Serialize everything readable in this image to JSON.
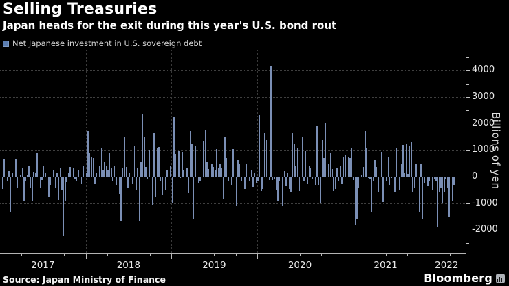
{
  "header": {
    "title": "Selling Treasuries",
    "subtitle": "Japan heads for the exit during this year's U.S. bond rout"
  },
  "legend": {
    "label": "Net Japanese investment in U.S. sovereign debt",
    "swatch_color": "#5b7db1"
  },
  "footer": {
    "source": "Source: Japan Ministry of Finance",
    "brand": "Bloomberg"
  },
  "chart_data": {
    "type": "bar",
    "title": "Selling Treasuries",
    "subtitle": "Japan heads for the exit during this year's U.S. bond rout",
    "series_name": "Net Japanese investment in U.S. sovereign debt",
    "frequency": "weekly",
    "x_start": "2017-01",
    "x_end": "2022-05",
    "xlabel": "",
    "ylabel": "Billions of yen",
    "ylim": [
      -2870,
      4780
    ],
    "y_major_ticks": [
      4000,
      3000,
      2000,
      1000,
      0,
      -1000,
      -2000
    ],
    "y_minor_ticks": [
      4500,
      3500,
      2500,
      1500,
      500,
      -500,
      -1500,
      -2500
    ],
    "x_year_labels": [
      "2017",
      "2018",
      "2019",
      "2020",
      "2021",
      "2022"
    ],
    "year_start_indices": [
      0,
      52,
      104,
      156,
      208,
      260
    ],
    "year_label_centers": [
      26,
      78,
      130,
      182,
      234,
      271
    ],
    "x_minor_tick_indices": [
      13,
      26,
      39,
      65,
      78,
      91,
      117,
      130,
      143,
      169,
      182,
      195,
      221,
      234,
      247,
      273
    ],
    "total_slots": 283,
    "grid": "dotted",
    "legend_position": "top-left",
    "colors": {
      "background": "#000000",
      "bar": "#7b8fb5",
      "grid": "#3f3f3f",
      "zero_line": "#8a8a8a",
      "axis": "#b3b3b3",
      "text": "#e8e8e8"
    },
    "values": [
      370,
      -470,
      650,
      -420,
      -160,
      200,
      -1330,
      140,
      440,
      640,
      -420,
      -600,
      90,
      300,
      -940,
      -160,
      90,
      420,
      -400,
      -940,
      180,
      140,
      870,
      560,
      -420,
      -120,
      400,
      150,
      -100,
      -770,
      -300,
      -640,
      250,
      -450,
      120,
      -890,
      330,
      -520,
      -2230,
      -940,
      -200,
      150,
      350,
      400,
      330,
      -100,
      -160,
      220,
      380,
      -250,
      410,
      300,
      150,
      1730,
      900,
      740,
      700,
      -250,
      150,
      -380,
      420,
      1090,
      250,
      530,
      400,
      250,
      870,
      300,
      -150,
      420,
      -300,
      250,
      -640,
      -1680,
      300,
      1470,
      350,
      -420,
      150,
      560,
      -250,
      1160,
      -480,
      300,
      -1650,
      540,
      2350,
      1490,
      370,
      -100,
      1020,
      -150,
      -1050,
      1620,
      -750,
      1060,
      1100,
      -150,
      -660,
      350,
      -480,
      250,
      -150,
      420,
      -1000,
      2240,
      840,
      930,
      975,
      -60,
      930,
      240,
      -20,
      330,
      -620,
      1725,
      1230,
      -1570,
      1150,
      540,
      -230,
      -150,
      -320,
      1340,
      1750,
      540,
      280,
      410,
      500,
      370,
      250,
      1030,
      330,
      460,
      300,
      -835,
      1465,
      690,
      -190,
      845,
      -320,
      1030,
      460,
      -1075,
      625,
      480,
      -150,
      -620,
      -475,
      480,
      -835,
      -150,
      260,
      -380,
      150,
      -240,
      -190,
      2330,
      -535,
      -475,
      1620,
      1380,
      690,
      -130,
      4165,
      -130,
      -90,
      -490,
      -940,
      -170,
      -950,
      -1075,
      200,
      -345,
      155,
      -475,
      -560,
      1660,
      1230,
      420,
      1060,
      -535,
      1190,
      1465,
      -190,
      975,
      -275,
      390,
      330,
      -100,
      215,
      -300,
      1925,
      -320,
      -1010,
      1380,
      690,
      2010,
      1230,
      500,
      885,
      280,
      -535,
      -475,
      300,
      -180,
      420,
      -260,
      760,
      800,
      -20,
      760,
      690,
      1060,
      -130,
      -1830,
      -1570,
      -405,
      500,
      80,
      370,
      1725,
      1060,
      -60,
      -80,
      -1335,
      -190,
      625,
      370,
      -580,
      625,
      930,
      -965,
      -1095,
      -190,
      715,
      -320,
      -60,
      625,
      -560,
      1060,
      1770,
      -490,
      500,
      1190,
      155,
      1230,
      110,
      1150,
      1295,
      -560,
      -430,
      460,
      -1250,
      -1355,
      460,
      -1570,
      -230,
      180,
      -340,
      -150,
      885,
      -490,
      -105,
      -170,
      -1875,
      -560,
      -430,
      -1010,
      -580,
      -90,
      -415,
      -1500,
      80,
      -900,
      -300
    ]
  }
}
